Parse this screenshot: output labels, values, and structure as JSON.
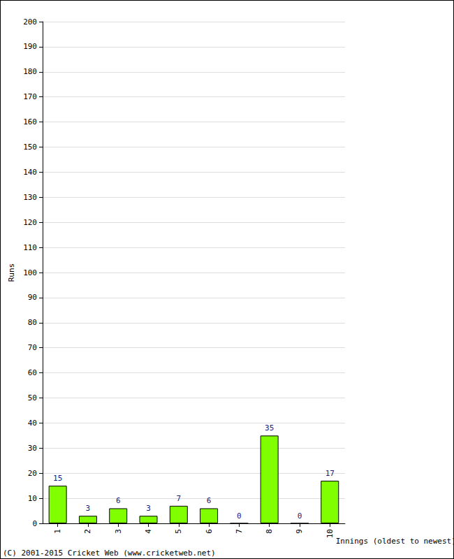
{
  "chart_data": {
    "type": "bar",
    "y_label": "Runs",
    "x_label": "Innings (oldest to newest)",
    "annotations": [
      "(C) 2001-2015 Cricket Web (www.cricketweb.net)"
    ],
    "categories": [
      "1",
      "2",
      "3",
      "4",
      "5",
      "6",
      "7",
      "8",
      "9",
      "10"
    ],
    "values": [
      15,
      3,
      6,
      3,
      7,
      6,
      0,
      35,
      0,
      17
    ],
    "color": "#80ff00",
    "ylim": [
      0,
      200
    ],
    "yticks": [
      0,
      10,
      20,
      30,
      40,
      50,
      60,
      70,
      80,
      90,
      100,
      110,
      120,
      130,
      140,
      150,
      160,
      170,
      180,
      190,
      200
    ],
    "grid": true,
    "data_labels": true
  }
}
